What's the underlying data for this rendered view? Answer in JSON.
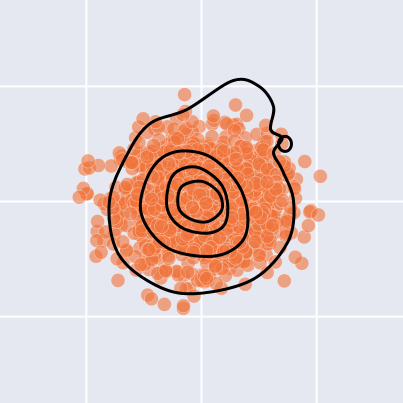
{
  "chart_data": {
    "type": "scatter",
    "title": "",
    "xlabel": "",
    "ylabel": "",
    "xlim": [
      -3.5,
      3.5
    ],
    "ylim": [
      -3.5,
      3.5
    ],
    "grid": true,
    "grid_lines_x": [
      -2,
      0,
      2
    ],
    "grid_lines_y": [
      -2,
      0,
      2
    ],
    "legend": "none",
    "series": [
      {
        "kind": "scatter",
        "color": "#f0733a",
        "alpha": 0.6,
        "point_count": 1500,
        "center": [
          0,
          0
        ],
        "spread": [
          0.95,
          0.8
        ]
      },
      {
        "kind": "density-contour",
        "color": "#000000",
        "levels": 4
      }
    ],
    "contours": [
      {
        "level": 1,
        "points": [
          [
            -0.1,
            -1.6
          ],
          [
            0.9,
            -1.35
          ],
          [
            1.5,
            -0.7
          ],
          [
            1.6,
            0
          ],
          [
            1.4,
            0.55
          ],
          [
            1.25,
            0.85
          ],
          [
            1.4,
            1.1
          ],
          [
            1.2,
            1.25
          ],
          [
            1.25,
            1.65
          ],
          [
            1.0,
            2.0
          ],
          [
            0.55,
            2.1
          ],
          [
            -0.25,
            1.6
          ],
          [
            -0.9,
            1.35
          ],
          [
            -1.3,
            0.8
          ],
          [
            -1.6,
            0
          ],
          [
            -1.45,
            -0.9
          ],
          [
            -0.8,
            -1.45
          ]
        ]
      },
      {
        "level": 2,
        "points": [
          [
            -0.9,
            0.5
          ],
          [
            -0.5,
            0.85
          ],
          [
            0.1,
            0.8
          ],
          [
            0.6,
            0.35
          ],
          [
            0.8,
            -0.2
          ],
          [
            0.7,
            -0.7
          ],
          [
            0.2,
            -0.95
          ],
          [
            -0.6,
            -0.8
          ],
          [
            -1.05,
            -0.2
          ]
        ]
      },
      {
        "level": 3,
        "points": [
          [
            -0.5,
            0.45
          ],
          [
            -0.1,
            0.6
          ],
          [
            0.3,
            0.35
          ],
          [
            0.45,
            0
          ],
          [
            0.4,
            -0.4
          ],
          [
            0.1,
            -0.55
          ],
          [
            -0.35,
            -0.45
          ],
          [
            -0.6,
            -0.1
          ]
        ]
      },
      {
        "level": 4,
        "points": [
          [
            -0.35,
            0.25
          ],
          [
            0,
            0.35
          ],
          [
            0.3,
            0.15
          ],
          [
            0.35,
            -0.15
          ],
          [
            0.1,
            -0.35
          ],
          [
            -0.2,
            -0.3
          ],
          [
            -0.4,
            -0.1
          ]
        ]
      }
    ]
  }
}
